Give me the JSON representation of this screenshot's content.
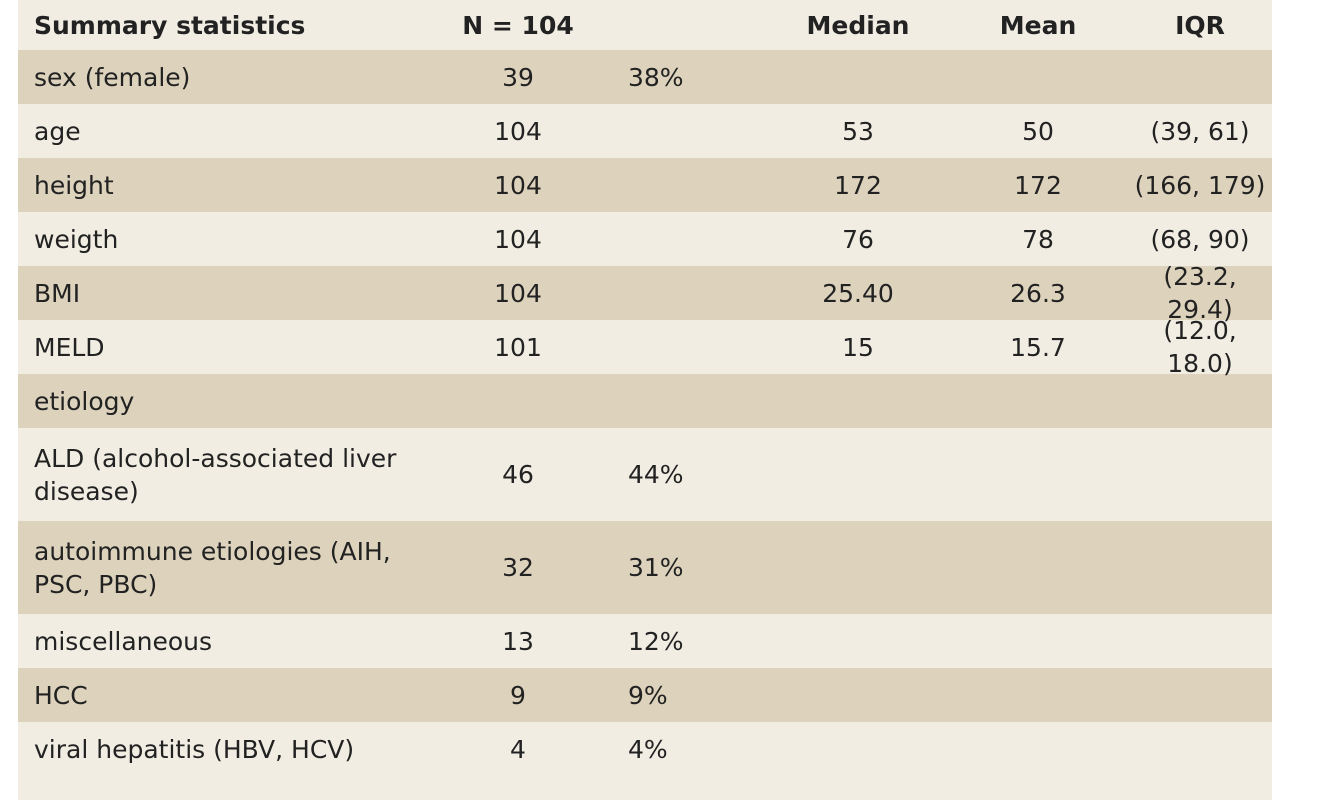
{
  "table": {
    "headers": {
      "label": "Summary statistics",
      "n": "N = 104",
      "pct": "",
      "median": "Median",
      "mean": "Mean",
      "iqr": "IQR"
    },
    "rows": [
      {
        "label": "sex (female)",
        "n": "39",
        "pct": "38%",
        "median": "",
        "mean": "",
        "iqr": ""
      },
      {
        "label": "age",
        "n": "104",
        "pct": "",
        "median": "53",
        "mean": "50",
        "iqr": "(39, 61)"
      },
      {
        "label": "height",
        "n": "104",
        "pct": "",
        "median": "172",
        "mean": "172",
        "iqr": "(166, 179)"
      },
      {
        "label": "weigth",
        "n": "104",
        "pct": "",
        "median": "76",
        "mean": "78",
        "iqr": "(68, 90)"
      },
      {
        "label": "BMI",
        "n": "104",
        "pct": "",
        "median": "25.40",
        "mean": "26.3",
        "iqr": "(23.2, 29.4)"
      },
      {
        "label": "MELD",
        "n": "101",
        "pct": "",
        "median": "15",
        "mean": "15.7",
        "iqr": "(12.0, 18.0)"
      },
      {
        "label": "etiology",
        "n": "",
        "pct": "",
        "median": "",
        "mean": "",
        "iqr": ""
      },
      {
        "label": "ALD (alcohol-associated liver disease)",
        "n": "46",
        "pct": "44%",
        "median": "",
        "mean": "",
        "iqr": ""
      },
      {
        "label": "autoimmune etiologies (AIH, PSC, PBC)",
        "n": "32",
        "pct": "31%",
        "median": "",
        "mean": "",
        "iqr": ""
      },
      {
        "label": "miscellaneous",
        "n": "13",
        "pct": "12%",
        "median": "",
        "mean": "",
        "iqr": ""
      },
      {
        "label": "HCC",
        "n": "9",
        "pct": "9%",
        "median": "",
        "mean": "",
        "iqr": ""
      },
      {
        "label": "viral hepatitis (HBV, HCV)",
        "n": "4",
        "pct": "4%",
        "median": "",
        "mean": "",
        "iqr": ""
      }
    ]
  }
}
